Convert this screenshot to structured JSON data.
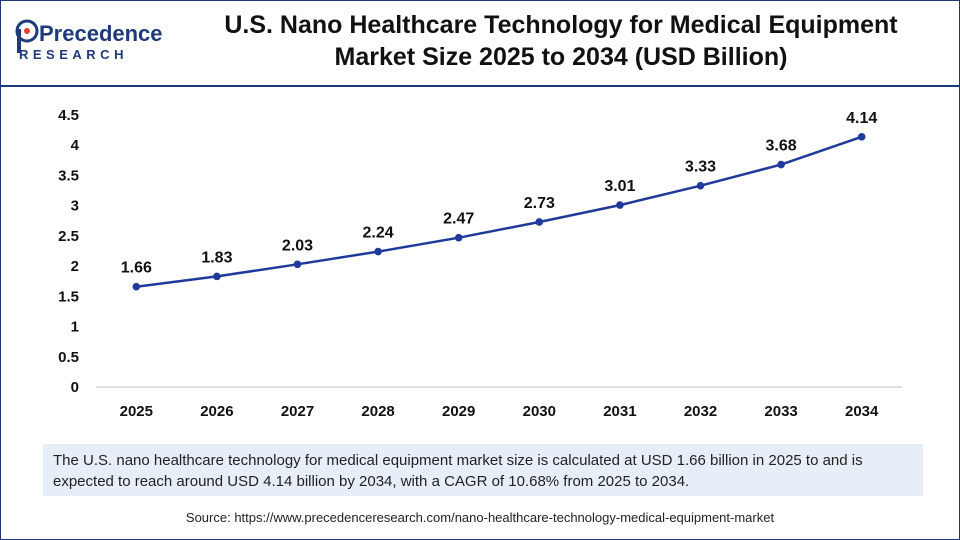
{
  "brand": {
    "name_top": "Precedence",
    "name_bottom": "RESEARCH",
    "primary_color": "#1f3a7a",
    "accent_color": "#e8402a"
  },
  "header": {
    "title_line1": "U.S. Nano Healthcare Technology for Medical Equipment",
    "title_line2": "Market Size 2025 to 2034 (USD Billion)"
  },
  "chart_data": {
    "type": "line",
    "title": "U.S. Nano Healthcare Technology for Medical Equipment Market Size 2025 to 2034 (USD Billion)",
    "xlabel": "",
    "ylabel": "",
    "categories": [
      "2025",
      "2026",
      "2027",
      "2028",
      "2029",
      "2030",
      "2031",
      "2032",
      "2033",
      "2034"
    ],
    "values": [
      1.66,
      1.83,
      2.03,
      2.24,
      2.47,
      2.73,
      3.01,
      3.33,
      3.68,
      4.14
    ],
    "data_labels": [
      "1.66",
      "1.83",
      "2.03",
      "2.24",
      "2.47",
      "2.73",
      "3.01",
      "3.33",
      "3.68",
      "4.14"
    ],
    "ylim": [
      0,
      4.5
    ],
    "yticks": [
      "0",
      "0.5",
      "1",
      "1.5",
      "2",
      "2.5",
      "3",
      "3.5",
      "4",
      "4.5"
    ],
    "grid": false,
    "line_color": "#1f3a9a"
  },
  "description": "The U.S. nano healthcare technology for medical equipment market size is calculated at USD 1.66 billion in 2025 to and is expected to reach around USD 4.14 billion by 2034, with a CAGR of 10.68% from 2025 to 2034.",
  "source": "Source: https://www.precedenceresearch.com/nano-healthcare-technology-medical-equipment-market"
}
